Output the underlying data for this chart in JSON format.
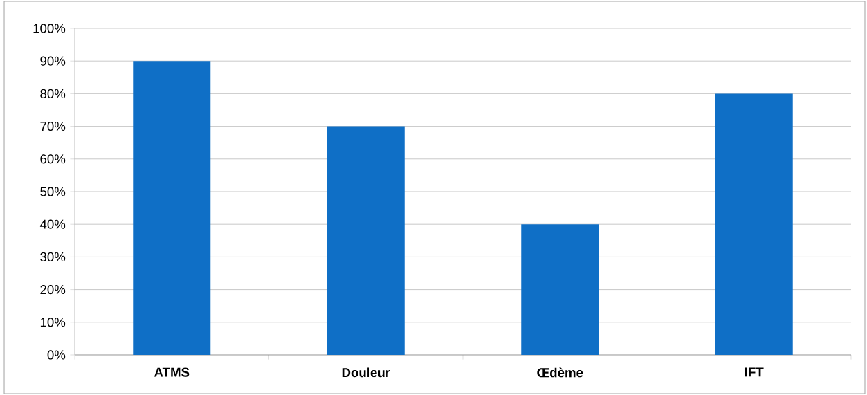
{
  "chart_data": {
    "type": "bar",
    "categories": [
      "ATMS",
      "Douleur",
      "Œdème",
      "IFT"
    ],
    "values": [
      90,
      70,
      40,
      80
    ],
    "color": "#0f6fc6",
    "ylim": [
      0,
      100
    ],
    "yticks": [
      {
        "value": 0,
        "label": "0%"
      },
      {
        "value": 10,
        "label": "10%"
      },
      {
        "value": 20,
        "label": "20%"
      },
      {
        "value": 30,
        "label": "30%"
      },
      {
        "value": 40,
        "label": "40%"
      },
      {
        "value": 50,
        "label": "50%"
      },
      {
        "value": 60,
        "label": "60%"
      },
      {
        "value": 70,
        "label": "70%"
      },
      {
        "value": 80,
        "label": "80%"
      },
      {
        "value": 90,
        "label": "90%"
      },
      {
        "value": 100,
        "label": "100%"
      }
    ],
    "grid": "y"
  }
}
